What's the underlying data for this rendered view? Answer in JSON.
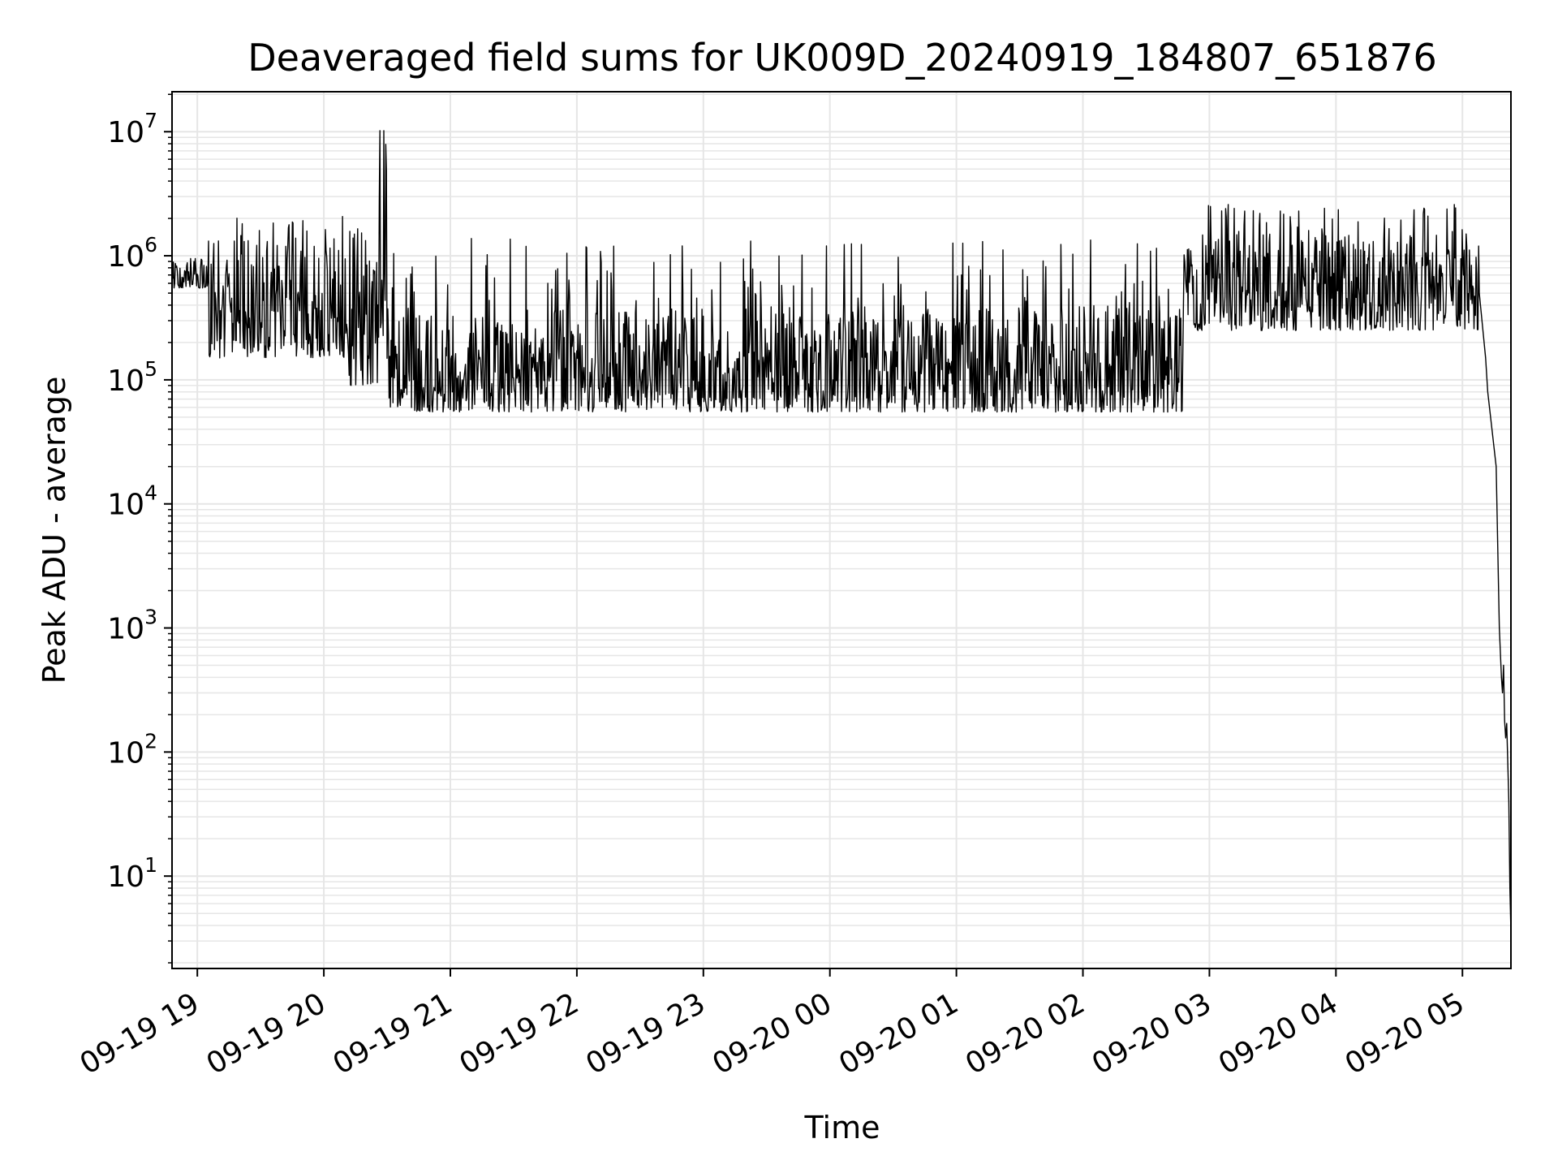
{
  "chart_data": {
    "type": "line",
    "title": "Deaveraged field sums for UK009D_20240919_184807_651876",
    "xlabel": "Time",
    "ylabel": "Peak ADU - average",
    "x_range": [
      "2024-09-19 18:48",
      "2024-09-20 05:23"
    ],
    "y_range": [
      1.8,
      21000000
    ],
    "y_scale": "log",
    "grid": true,
    "line_color": "#000000",
    "grid_color": "#e6e6e6",
    "x_ticks": [
      {
        "label": "09-19 19",
        "time": "2024-09-19 19:00"
      },
      {
        "label": "09-19 20",
        "time": "2024-09-19 20:00"
      },
      {
        "label": "09-19 21",
        "time": "2024-09-19 21:00"
      },
      {
        "label": "09-19 22",
        "time": "2024-09-19 22:00"
      },
      {
        "label": "09-19 23",
        "time": "2024-09-19 23:00"
      },
      {
        "label": "09-20 00",
        "time": "2024-09-20 00:00"
      },
      {
        "label": "09-20 01",
        "time": "2024-09-20 01:00"
      },
      {
        "label": "09-20 02",
        "time": "2024-09-20 02:00"
      },
      {
        "label": "09-20 03",
        "time": "2024-09-20 03:00"
      },
      {
        "label": "09-20 04",
        "time": "2024-09-20 04:00"
      },
      {
        "label": "09-20 05",
        "time": "2024-09-20 05:00"
      }
    ],
    "y_ticks": [
      {
        "base": "10",
        "exp": "1",
        "value": 10
      },
      {
        "base": "10",
        "exp": "2",
        "value": 100
      },
      {
        "base": "10",
        "exp": "3",
        "value": 1000
      },
      {
        "base": "10",
        "exp": "4",
        "value": 10000
      },
      {
        "base": "10",
        "exp": "5",
        "value": 100000
      },
      {
        "base": "10",
        "exp": "6",
        "value": 1000000
      },
      {
        "base": "10",
        "exp": "7",
        "value": 10000000
      }
    ],
    "series": [
      {
        "segments": [
          {
            "start": "2024-09-19 18:48",
            "end": "2024-09-19 19:05",
            "floor": 550000,
            "ceil": 950000,
            "spike_max": 950000
          },
          {
            "start": "2024-09-19 19:05",
            "end": "2024-09-19 20:12",
            "floor": 150000,
            "ceil": 1200000,
            "spike_max": 2100000
          },
          {
            "start": "2024-09-19 20:12",
            "end": "2024-09-19 20:26",
            "floor": 90000,
            "ceil": 1000000,
            "spike_max": 1800000
          },
          {
            "start": "2024-09-19 20:26",
            "end": "2024-09-19 20:30",
            "floor": 200000,
            "ceil": 10200000,
            "spike_max": 10200000
          },
          {
            "start": "2024-09-19 20:30",
            "end": "2024-09-20 02:48",
            "floor": 55000,
            "ceil": 400000,
            "spike_max": 1400000
          },
          {
            "start": "2024-09-20 02:48",
            "end": "2024-09-20 05:08",
            "floor": 250000,
            "ceil": 1500000,
            "spike_max": 2700000
          }
        ],
        "points": [
          {
            "time": "2024-09-20 05:08",
            "value": 500000
          },
          {
            "time": "2024-09-20 05:11",
            "value": 150000
          },
          {
            "time": "2024-09-20 05:12",
            "value": 80000
          },
          {
            "time": "2024-09-20 05:14",
            "value": 40000
          },
          {
            "time": "2024-09-20 05:16",
            "value": 20000
          },
          {
            "time": "2024-09-20 05:17.5",
            "value": 1000
          },
          {
            "time": "2024-09-20 05:18.5",
            "value": 400
          },
          {
            "time": "2024-09-20 05:19",
            "value": 300
          },
          {
            "time": "2024-09-20 05:19.5",
            "value": 500
          },
          {
            "time": "2024-09-20 05:20",
            "value": 180
          },
          {
            "time": "2024-09-20 05:20.5",
            "value": 130
          },
          {
            "time": "2024-09-20 05:21",
            "value": 170
          },
          {
            "time": "2024-09-20 05:22",
            "value": 40
          },
          {
            "time": "2024-09-20 05:22.5",
            "value": 8
          },
          {
            "time": "2024-09-20 05:23",
            "value": 3.5
          }
        ]
      }
    ]
  }
}
